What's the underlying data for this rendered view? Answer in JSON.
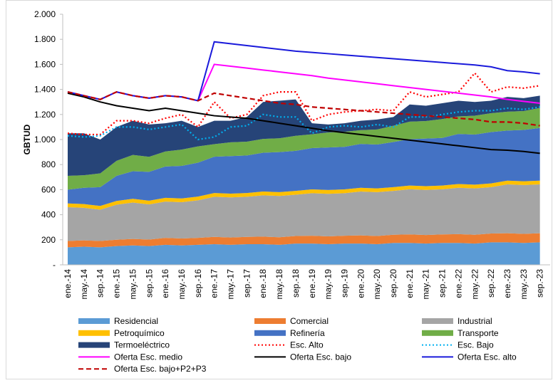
{
  "chart_data": {
    "type": "area",
    "y_label": "GBTUD",
    "categories": [
      "ene.-14",
      "may.-14",
      "sep.-14",
      "ene.-15",
      "may.-15",
      "sep.-15",
      "ene.-16",
      "may.-16",
      "sep.-16",
      "ene.-17",
      "may.-17",
      "sep.-17",
      "ene.-18",
      "may.-18",
      "sep.-18",
      "ene.-19",
      "may.-19",
      "sep.-19",
      "ene.-20",
      "may.-20",
      "sep.-20",
      "ene.-21",
      "may.-21",
      "sep.-21",
      "ene.-22",
      "may.-22",
      "sep.-22",
      "ene.-23",
      "may.-23",
      "sep.-23"
    ],
    "ylim": [
      0,
      2000
    ],
    "yticks": [
      {
        "value": 0,
        "label": "-"
      },
      200,
      400,
      600,
      800,
      {
        "value": 1000,
        "label": "1.000"
      },
      {
        "value": 1200,
        "label": "1.200"
      },
      {
        "value": 1400,
        "label": "1.400"
      },
      {
        "value": 1600,
        "label": "1.600"
      },
      {
        "value": 1800,
        "label": "1.800"
      },
      {
        "value": 2000,
        "label": "2.000"
      }
    ],
    "grid": false,
    "series": [
      {
        "name": "Residencial",
        "style": "stacked",
        "color": "#5b9bd5",
        "values": [
          140,
          145,
          140,
          150,
          155,
          150,
          160,
          155,
          160,
          165,
          160,
          165,
          165,
          160,
          170,
          170,
          165,
          170,
          170,
          165,
          175,
          175,
          170,
          175,
          175,
          170,
          180,
          180,
          175,
          180
        ]
      },
      {
        "name": "Comercial",
        "style": "stacked",
        "color": "#ed7d31",
        "values": [
          50,
          50,
          50,
          50,
          52,
          52,
          55,
          55,
          55,
          58,
          58,
          58,
          60,
          60,
          60,
          62,
          62,
          62,
          65,
          65,
          65,
          68,
          68,
          68,
          70,
          70,
          70,
          72,
          72,
          72
        ]
      },
      {
        "name": "Industrial",
        "style": "stacked",
        "color": "#a5a5a5",
        "values": [
          270,
          260,
          250,
          280,
          290,
          280,
          290,
          290,
          300,
          320,
          320,
          320,
          330,
          330,
          330,
          340,
          340,
          340,
          350,
          350,
          350,
          360,
          360,
          360,
          370,
          370,
          370,
          390,
          390,
          390
        ]
      },
      {
        "name": "Petroquímico",
        "style": "stacked",
        "color": "#ffc000",
        "values": [
          30,
          30,
          30,
          30,
          30,
          30,
          30,
          30,
          30,
          30,
          30,
          30,
          30,
          30,
          30,
          30,
          30,
          30,
          30,
          30,
          30,
          30,
          30,
          30,
          30,
          30,
          30,
          30,
          30,
          30
        ]
      },
      {
        "name": "Refinería",
        "style": "stacked",
        "color": "#4472c4",
        "values": [
          110,
          130,
          150,
          200,
          220,
          230,
          250,
          260,
          270,
          290,
          300,
          300,
          310,
          320,
          320,
          330,
          340,
          340,
          350,
          350,
          360,
          370,
          380,
          380,
          400,
          400,
          410,
          400,
          410,
          420
        ]
      },
      {
        "name": "Transporte",
        "style": "stacked",
        "color": "#70ad47",
        "values": [
          110,
          100,
          110,
          120,
          130,
          120,
          120,
          130,
          130,
          100,
          110,
          110,
          110,
          110,
          120,
          110,
          120,
          120,
          110,
          120,
          130,
          140,
          140,
          150,
          140,
          150,
          150,
          150,
          150,
          160
        ]
      },
      {
        "name": "Termoeléctrico",
        "style": "stacked",
        "color": "#264478",
        "values": [
          340,
          335,
          270,
          270,
          273,
          258,
          225,
          230,
          155,
          187,
          172,
          197,
          295,
          300,
          290,
          88,
          63,
          68,
          75,
          80,
          70,
          137,
          122,
          127,
          125,
          110,
          100,
          118,
          103,
          98
        ]
      },
      {
        "name": "Esc. Alto",
        "style": "dotted",
        "color": "#ff0000",
        "values": [
          1050,
          1040,
          1040,
          1150,
          1150,
          1130,
          1170,
          1200,
          1100,
          1300,
          1170,
          1200,
          1350,
          1380,
          1380,
          1150,
          1200,
          1220,
          1230,
          1240,
          1230,
          1380,
          1340,
          1360,
          1380,
          1530,
          1380,
          1420,
          1410,
          1430
        ]
      },
      {
        "name": "Esc. Bajo",
        "style": "dotted",
        "color": "#00b0f0",
        "values": [
          1030,
          1020,
          1030,
          1100,
          1100,
          1080,
          1100,
          1120,
          1000,
          1020,
          1100,
          1110,
          1200,
          1180,
          1180,
          1050,
          1100,
          1110,
          1100,
          1120,
          1100,
          1180,
          1180,
          1200,
          1220,
          1230,
          1230,
          1250,
          1240,
          1260
        ]
      },
      {
        "name": "Oferta Esc. medio",
        "style": "solid",
        "color": "#ff00ff",
        "values": [
          1380,
          1350,
          1320,
          1380,
          1350,
          1330,
          1350,
          1340,
          1310,
          1600,
          1585,
          1570,
          1555,
          1540,
          1525,
          1510,
          1490,
          1475,
          1460,
          1445,
          1430,
          1415,
          1400,
          1385,
          1370,
          1355,
          1340,
          1320,
          1305,
          1290
        ]
      },
      {
        "name": "Oferta Esc. bajo",
        "style": "solid",
        "color": "#000000",
        "values": [
          1370,
          1340,
          1300,
          1270,
          1250,
          1230,
          1250,
          1230,
          1210,
          1190,
          1180,
          1170,
          1150,
          1130,
          1110,
          1090,
          1070,
          1055,
          1040,
          1025,
          1010,
          995,
          980,
          965,
          950,
          935,
          920,
          915,
          905,
          890
        ]
      },
      {
        "name": "Oferta Esc. alto",
        "style": "solid",
        "color": "#1a1adb",
        "values": [
          1380,
          1350,
          1320,
          1380,
          1350,
          1330,
          1350,
          1340,
          1310,
          1780,
          1765,
          1750,
          1735,
          1720,
          1705,
          1695,
          1685,
          1675,
          1665,
          1655,
          1645,
          1635,
          1625,
          1615,
          1605,
          1595,
          1580,
          1550,
          1540,
          1525
        ]
      },
      {
        "name": "Oferta Esc. bajo+P2+P3",
        "style": "dashed",
        "color": "#c00000",
        "values": [
          1380,
          1350,
          1320,
          1380,
          1350,
          1330,
          1350,
          1340,
          1310,
          1370,
          1350,
          1330,
          1310,
          1290,
          1280,
          1260,
          1250,
          1240,
          1230,
          1220,
          1210,
          1200,
          1190,
          1180,
          1170,
          1160,
          1140,
          1140,
          1130,
          1110
        ]
      }
    ]
  }
}
